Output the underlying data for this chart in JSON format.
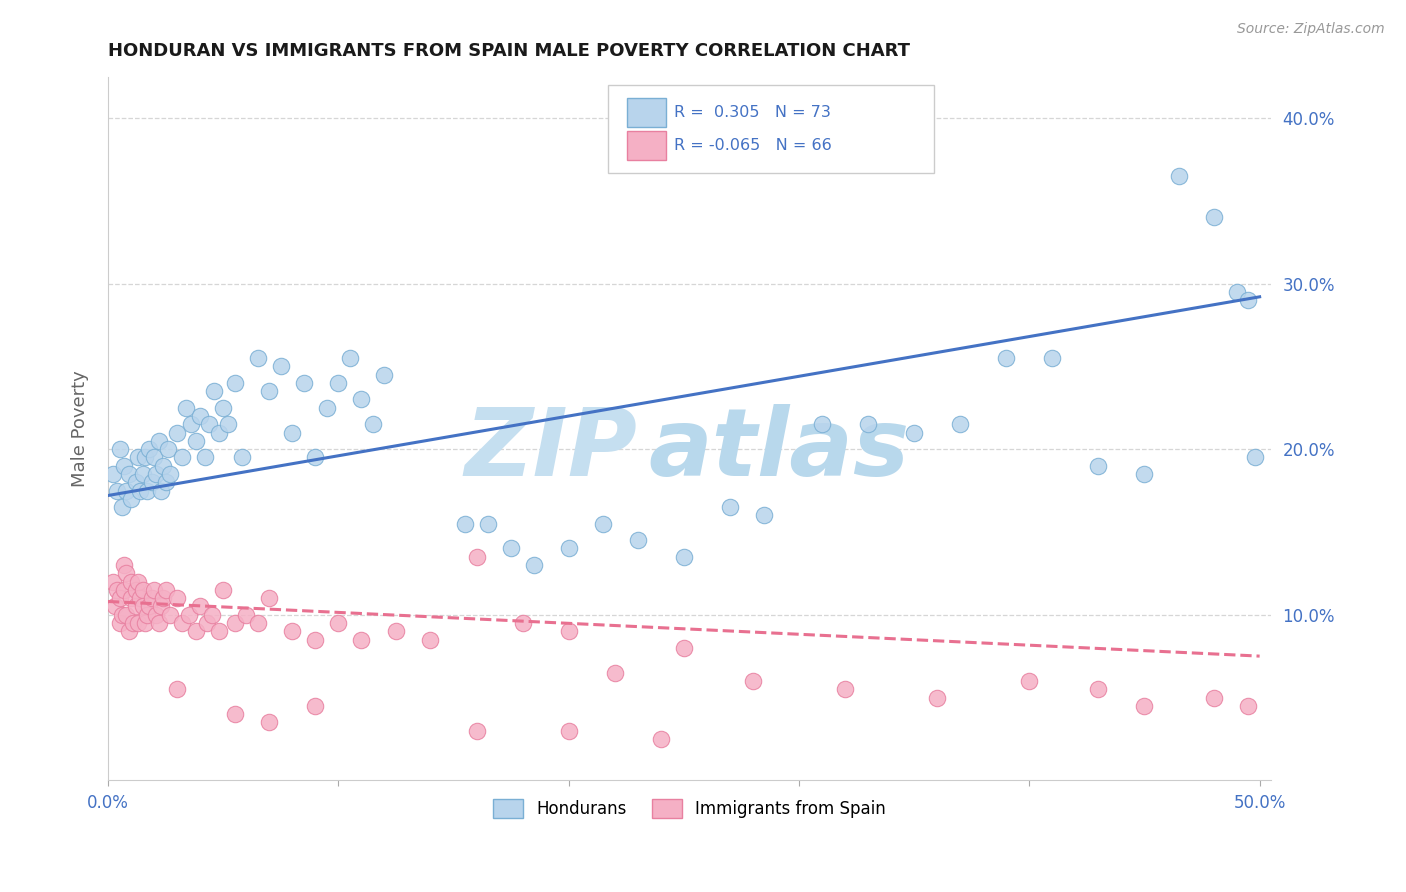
{
  "title": "HONDURAN VS IMMIGRANTS FROM SPAIN MALE POVERTY CORRELATION CHART",
  "source": "Source: ZipAtlas.com",
  "ylabel": "Male Poverty",
  "xlim": [
    0.0,
    0.505
  ],
  "ylim": [
    0.0,
    0.425
  ],
  "xticks": [
    0.0,
    0.1,
    0.2,
    0.3,
    0.4,
    0.5
  ],
  "xticklabels": [
    "0.0%",
    "",
    "",
    "",
    "",
    "50.0%"
  ],
  "yticks": [
    0.1,
    0.2,
    0.3,
    0.4
  ],
  "yticklabels_right": [
    "10.0%",
    "20.0%",
    "30.0%",
    "40.0%"
  ],
  "legend_r1": "0.305",
  "legend_n1": "73",
  "legend_r2": "-0.065",
  "legend_n2": "66",
  "legend_label1": "Hondurans",
  "legend_label2": "Immigrants from Spain",
  "color_honduran_fill": "#b8d4ec",
  "color_honduran_edge": "#7aafd4",
  "color_spain_fill": "#f5b0c5",
  "color_spain_edge": "#e880a0",
  "color_line1": "#4472c4",
  "color_line2": "#e87090",
  "title_color": "#1a1a1a",
  "axis_label_color": "#666666",
  "tick_color": "#4472c4",
  "background_color": "#ffffff",
  "grid_color": "#cccccc",
  "line1_start_y": 0.172,
  "line1_end_y": 0.292,
  "line2_start_y": 0.108,
  "line2_end_y": 0.075
}
